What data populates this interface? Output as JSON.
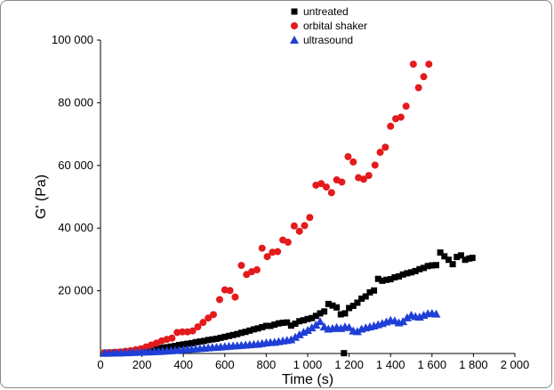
{
  "chart_data": {
    "type": "scatter",
    "title": "",
    "xlabel": "Time (s)",
    "ylabel": "G' (Pa)",
    "xlim": [
      0,
      2000
    ],
    "ylim": [
      0,
      100000
    ],
    "x_ticks": [
      0,
      200,
      400,
      600,
      800,
      1000,
      1200,
      1400,
      1600,
      1800,
      2000
    ],
    "x_tick_labels": [
      "0",
      "200",
      "400",
      "600",
      "800",
      "1 000",
      "1 200",
      "1 400",
      "1 600",
      "1 800",
      "2 000"
    ],
    "y_ticks": [
      20000,
      40000,
      60000,
      80000,
      100000
    ],
    "y_tick_labels": [
      "20 000",
      "40 000",
      "60 000",
      "80 000",
      "100 000"
    ],
    "grid": false,
    "legend_position": "top-right",
    "series": [
      {
        "name": "untreated",
        "marker": "square",
        "color": "#000000",
        "points": [
          [
            20,
            200
          ],
          [
            40,
            250
          ],
          [
            60,
            300
          ],
          [
            80,
            350
          ],
          [
            100,
            450
          ],
          [
            120,
            550
          ],
          [
            140,
            650
          ],
          [
            160,
            800
          ],
          [
            180,
            900
          ],
          [
            200,
            1000
          ],
          [
            220,
            1100
          ],
          [
            240,
            1300
          ],
          [
            260,
            1400
          ],
          [
            280,
            1600
          ],
          [
            300,
            1800
          ],
          [
            320,
            2000
          ],
          [
            340,
            2200
          ],
          [
            360,
            2400
          ],
          [
            380,
            2700
          ],
          [
            400,
            2900
          ],
          [
            420,
            3100
          ],
          [
            440,
            3300
          ],
          [
            460,
            3600
          ],
          [
            480,
            3800
          ],
          [
            500,
            4000
          ],
          [
            520,
            4300
          ],
          [
            540,
            4500
          ],
          [
            560,
            4700
          ],
          [
            580,
            5000
          ],
          [
            600,
            5300
          ],
          [
            620,
            5600
          ],
          [
            640,
            5900
          ],
          [
            660,
            6200
          ],
          [
            680,
            6600
          ],
          [
            700,
            6900
          ],
          [
            720,
            7300
          ],
          [
            740,
            7700
          ],
          [
            760,
            8000
          ],
          [
            780,
            8400
          ],
          [
            800,
            8800
          ],
          [
            820,
            8800
          ],
          [
            840,
            9200
          ],
          [
            860,
            9600
          ],
          [
            880,
            9800
          ],
          [
            900,
            9900
          ],
          [
            920,
            8900
          ],
          [
            940,
            9500
          ],
          [
            960,
            10300
          ],
          [
            980,
            10600
          ],
          [
            1000,
            11000
          ],
          [
            1020,
            11300
          ],
          [
            1040,
            12000
          ],
          [
            1060,
            12800
          ],
          [
            1080,
            13400
          ],
          [
            1100,
            15800
          ],
          [
            1120,
            15300
          ],
          [
            1140,
            14700
          ],
          [
            1160,
            12500
          ],
          [
            1175,
            100
          ],
          [
            1180,
            12800
          ],
          [
            1200,
            14500
          ],
          [
            1220,
            15200
          ],
          [
            1240,
            16200
          ],
          [
            1260,
            17500
          ],
          [
            1280,
            18200
          ],
          [
            1300,
            19500
          ],
          [
            1320,
            20100
          ],
          [
            1340,
            23800
          ],
          [
            1360,
            23200
          ],
          [
            1380,
            23500
          ],
          [
            1400,
            23700
          ],
          [
            1420,
            24300
          ],
          [
            1440,
            24600
          ],
          [
            1460,
            25200
          ],
          [
            1480,
            25600
          ],
          [
            1500,
            25900
          ],
          [
            1520,
            26300
          ],
          [
            1540,
            26900
          ],
          [
            1560,
            27300
          ],
          [
            1580,
            27900
          ],
          [
            1600,
            28100
          ],
          [
            1620,
            28200
          ],
          [
            1640,
            32200
          ],
          [
            1660,
            31000
          ],
          [
            1680,
            29900
          ],
          [
            1700,
            28500
          ],
          [
            1720,
            30800
          ],
          [
            1740,
            31300
          ],
          [
            1760,
            29900
          ],
          [
            1780,
            30300
          ],
          [
            1795,
            30500
          ]
        ]
      },
      {
        "name": "orbital shaker",
        "marker": "circle",
        "color": "#e41a1c",
        "points": [
          [
            20,
            200
          ],
          [
            45,
            300
          ],
          [
            70,
            400
          ],
          [
            95,
            500
          ],
          [
            120,
            700
          ],
          [
            145,
            900
          ],
          [
            170,
            1200
          ],
          [
            195,
            1500
          ],
          [
            220,
            2100
          ],
          [
            245,
            2700
          ],
          [
            270,
            3300
          ],
          [
            295,
            4000
          ],
          [
            320,
            4500
          ],
          [
            345,
            4900
          ],
          [
            370,
            6700
          ],
          [
            395,
            6900
          ],
          [
            420,
            6900
          ],
          [
            445,
            7200
          ],
          [
            470,
            8500
          ],
          [
            495,
            9900
          ],
          [
            520,
            11300
          ],
          [
            545,
            12400
          ],
          [
            575,
            17200
          ],
          [
            600,
            20300
          ],
          [
            625,
            20100
          ],
          [
            650,
            18000
          ],
          [
            680,
            28100
          ],
          [
            705,
            25200
          ],
          [
            730,
            26100
          ],
          [
            755,
            26700
          ],
          [
            780,
            33600
          ],
          [
            805,
            30900
          ],
          [
            830,
            32300
          ],
          [
            855,
            32500
          ],
          [
            880,
            36200
          ],
          [
            905,
            35500
          ],
          [
            935,
            40700
          ],
          [
            960,
            39000
          ],
          [
            985,
            40800
          ],
          [
            1010,
            43400
          ],
          [
            1040,
            53700
          ],
          [
            1065,
            54200
          ],
          [
            1090,
            53100
          ],
          [
            1115,
            51300
          ],
          [
            1140,
            55400
          ],
          [
            1165,
            54700
          ],
          [
            1195,
            62800
          ],
          [
            1220,
            61100
          ],
          [
            1245,
            56100
          ],
          [
            1270,
            55600
          ],
          [
            1295,
            56800
          ],
          [
            1325,
            60100
          ],
          [
            1350,
            64200
          ],
          [
            1375,
            65800
          ],
          [
            1400,
            72500
          ],
          [
            1425,
            74900
          ],
          [
            1450,
            75400
          ],
          [
            1475,
            78900
          ],
          [
            1510,
            92300
          ],
          [
            1535,
            84800
          ],
          [
            1560,
            88300
          ],
          [
            1585,
            92300
          ]
        ]
      },
      {
        "name": "ultrasound",
        "marker": "triangle",
        "color": "#1f3fd6",
        "points": [
          [
            20,
            100
          ],
          [
            40,
            120
          ],
          [
            60,
            150
          ],
          [
            80,
            180
          ],
          [
            100,
            200
          ],
          [
            120,
            250
          ],
          [
            140,
            300
          ],
          [
            160,
            350
          ],
          [
            180,
            400
          ],
          [
            200,
            450
          ],
          [
            220,
            500
          ],
          [
            240,
            550
          ],
          [
            260,
            600
          ],
          [
            280,
            650
          ],
          [
            300,
            700
          ],
          [
            320,
            800
          ],
          [
            340,
            900
          ],
          [
            360,
            1000
          ],
          [
            380,
            1100
          ],
          [
            400,
            1200
          ],
          [
            420,
            1300
          ],
          [
            440,
            1400
          ],
          [
            460,
            1500
          ],
          [
            480,
            1600
          ],
          [
            500,
            1700
          ],
          [
            520,
            1800
          ],
          [
            540,
            1900
          ],
          [
            560,
            2000
          ],
          [
            580,
            2100
          ],
          [
            600,
            2200
          ],
          [
            620,
            2300
          ],
          [
            640,
            2400
          ],
          [
            660,
            2500
          ],
          [
            680,
            2600
          ],
          [
            700,
            2700
          ],
          [
            720,
            2800
          ],
          [
            740,
            2900
          ],
          [
            760,
            3000
          ],
          [
            780,
            3200
          ],
          [
            800,
            3400
          ],
          [
            820,
            3500
          ],
          [
            840,
            3600
          ],
          [
            860,
            3800
          ],
          [
            880,
            4000
          ],
          [
            900,
            4200
          ],
          [
            920,
            4400
          ],
          [
            940,
            5200
          ],
          [
            960,
            6000
          ],
          [
            980,
            6800
          ],
          [
            1000,
            7400
          ],
          [
            1020,
            8200
          ],
          [
            1040,
            9100
          ],
          [
            1060,
            10200
          ],
          [
            1080,
            8500
          ],
          [
            1100,
            7800
          ],
          [
            1120,
            8000
          ],
          [
            1140,
            8300
          ],
          [
            1160,
            8000
          ],
          [
            1180,
            8500
          ],
          [
            1200,
            8300
          ],
          [
            1220,
            7200
          ],
          [
            1240,
            7000
          ],
          [
            1260,
            7800
          ],
          [
            1280,
            8200
          ],
          [
            1300,
            8500
          ],
          [
            1320,
            8800
          ],
          [
            1340,
            9200
          ],
          [
            1360,
            9600
          ],
          [
            1380,
            10100
          ],
          [
            1400,
            10600
          ],
          [
            1420,
            10400
          ],
          [
            1440,
            9800
          ],
          [
            1460,
            10200
          ],
          [
            1480,
            11400
          ],
          [
            1500,
            12200
          ],
          [
            1520,
            11800
          ],
          [
            1540,
            11600
          ],
          [
            1560,
            12200
          ],
          [
            1580,
            12700
          ],
          [
            1600,
            12800
          ],
          [
            1620,
            12600
          ]
        ]
      }
    ]
  }
}
